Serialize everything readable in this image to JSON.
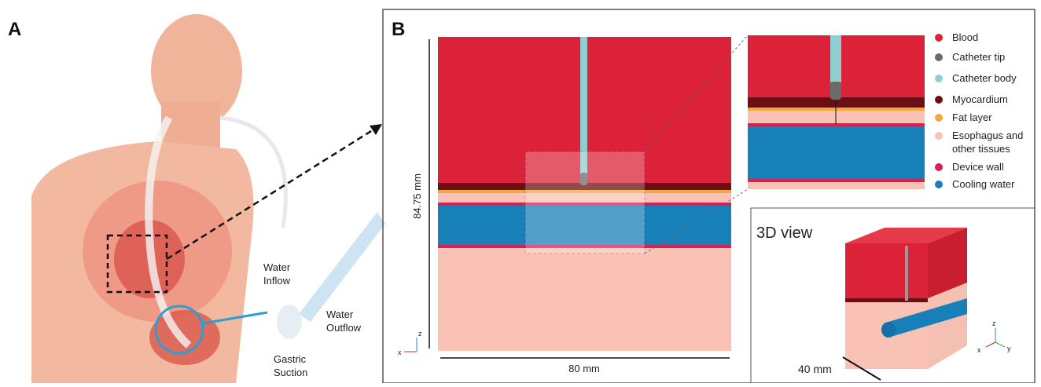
{
  "panel_a": {
    "label": "A",
    "annotations": {
      "inflow": [
        "Water",
        "Inflow"
      ],
      "outflow": [
        "Water",
        "Outflow"
      ],
      "suction": [
        "Gastric",
        "Suction"
      ]
    }
  },
  "panel_b": {
    "label": "B",
    "height_label": "84.75 mm",
    "width_label": "80 mm",
    "view_3d_title": "3D view",
    "depth_label": "40 mm",
    "axes": {
      "x": "x",
      "y": "y",
      "z": "z"
    },
    "legend": [
      {
        "label": [
          "Blood"
        ],
        "color": "#dc2238"
      },
      {
        "label": [
          "Catheter tip"
        ],
        "color": "#6b6b6b"
      },
      {
        "label": [
          "Catheter body"
        ],
        "color": "#8fcfd1"
      },
      {
        "label": [
          "Myocardium"
        ],
        "color": "#6b0f14"
      },
      {
        "label": [
          "Fat layer"
        ],
        "color": "#f2a83a"
      },
      {
        "label": [
          "Esophagus and",
          "other tissues"
        ],
        "color": "#f9c2b4"
      },
      {
        "label": [
          "Device wall"
        ],
        "color": "#d81f56"
      },
      {
        "label": [
          "Cooling water"
        ],
        "color": "#1880b8"
      }
    ]
  }
}
